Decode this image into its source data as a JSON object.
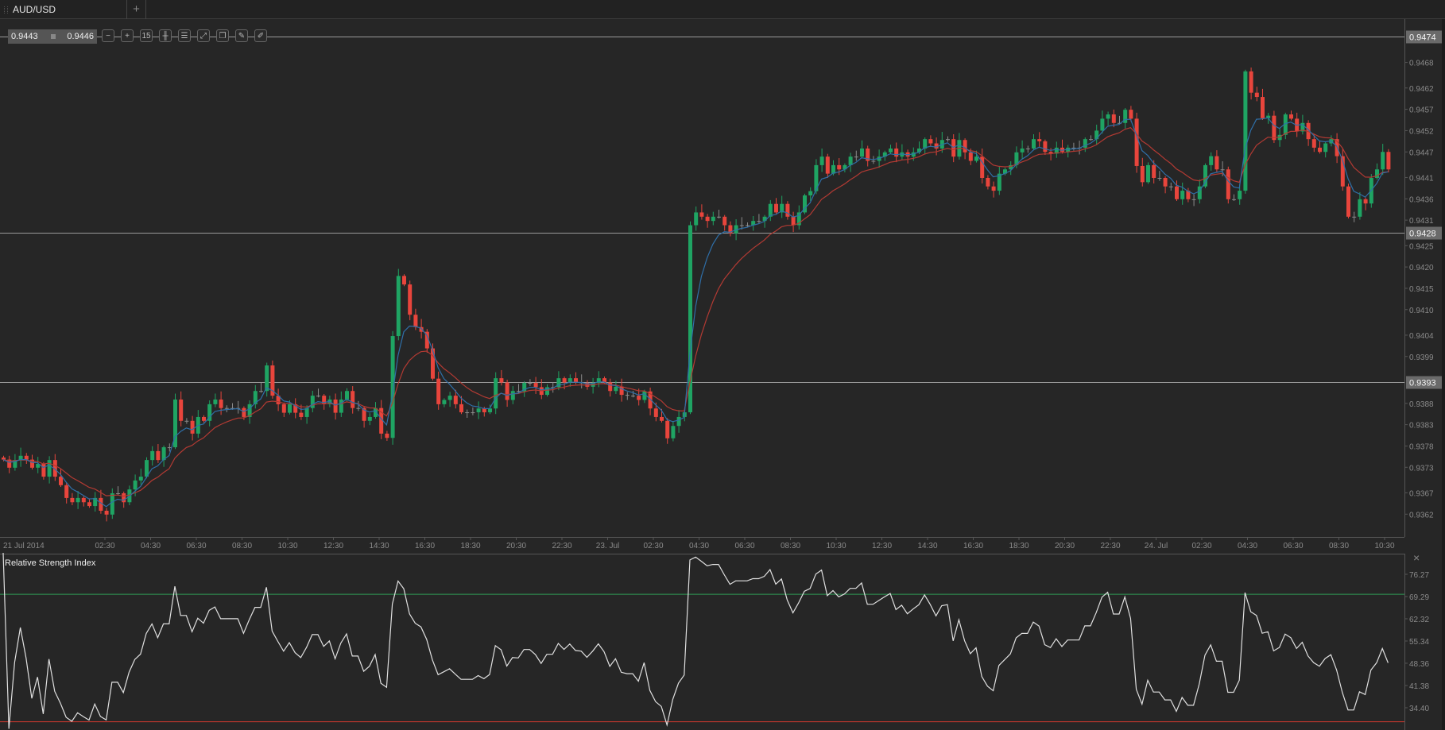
{
  "tabs": {
    "active_label": "AUD/USD",
    "add_label": "+"
  },
  "quote": {
    "bid": "0.9443",
    "ask": "0.9446"
  },
  "toolbar": {
    "tools": [
      {
        "icon": "zoom-out-icon",
        "glyph": "−"
      },
      {
        "icon": "zoom-in-icon",
        "glyph": "+"
      },
      {
        "icon": "timeframe-icon",
        "glyph": "15"
      },
      {
        "icon": "chart-type-candles-icon",
        "glyph": "╫"
      },
      {
        "icon": "indicators-settings-icon",
        "glyph": "☰"
      },
      {
        "icon": "autoscale-icon",
        "glyph": "⤢"
      },
      {
        "icon": "copy-chart-icon",
        "glyph": "❐"
      },
      {
        "icon": "edit-icon",
        "glyph": "✎"
      },
      {
        "icon": "draw-icon",
        "glyph": "✐"
      }
    ]
  },
  "colors": {
    "bull": "#1fa463",
    "bear": "#e8453c",
    "doji": "#8a8a8a",
    "ma_fast": "#2f6fa8",
    "ma_slow": "#b23a33",
    "rsi_line": "#e0e0e0",
    "rsi_upper": "#2f9a55",
    "rsi_lower": "#d0392f",
    "hline": "#9a9a9a"
  },
  "chart_data": [
    {
      "type": "candlestick",
      "symbol": "AUD/USD",
      "timeframe": "15",
      "ylim": [
        0.9357,
        0.9478
      ],
      "y_ticks": [
        "0.9468",
        "0.9462",
        "0.9457",
        "0.9452",
        "0.9447",
        "0.9441",
        "0.9436",
        "0.9431",
        "0.9425",
        "0.9420",
        "0.9415",
        "0.9410",
        "0.9404",
        "0.9399",
        "0.9388",
        "0.9383",
        "0.9378",
        "0.9373",
        "0.9367",
        "0.9362"
      ],
      "horizontal_lines": [
        "0.9474",
        "0.9428",
        "0.9393"
      ],
      "x_ticks": [
        "21 Jul 2014",
        "02:30",
        "04:30",
        "06:30",
        "08:30",
        "10:30",
        "12:30",
        "14:30",
        "16:30",
        "18:30",
        "20:30",
        "22:30",
        "23. Jul",
        "02:30",
        "04:30",
        "06:30",
        "08:30",
        "10:30",
        "12:30",
        "14:30",
        "16:30",
        "18:30",
        "20:30",
        "22:30",
        "24. Jul",
        "02:30",
        "04:30",
        "06:30",
        "08:30",
        "10:30"
      ],
      "closes": [
        0.93748,
        0.93729,
        0.93747,
        0.93757,
        0.93748,
        0.93729,
        0.93738,
        0.93708,
        0.93747,
        0.93708,
        0.93688,
        0.93658,
        0.93648,
        0.93658,
        0.93648,
        0.93639,
        0.93658,
        0.93628,
        0.93619,
        0.93669,
        0.93669,
        0.93648,
        0.93678,
        0.93699,
        0.93708,
        0.93747,
        0.93768,
        0.93747,
        0.93777,
        0.93777,
        0.93889,
        0.93839,
        0.93839,
        0.93809,
        0.93848,
        0.93839,
        0.93878,
        0.93889,
        0.93869,
        0.93869,
        0.93869,
        0.93869,
        0.93848,
        0.93878,
        0.93909,
        0.93909,
        0.93969,
        0.93898,
        0.93878,
        0.93858,
        0.93878,
        0.93858,
        0.93848,
        0.93869,
        0.93898,
        0.93898,
        0.93878,
        0.93889,
        0.93858,
        0.93889,
        0.93909,
        0.93869,
        0.93869,
        0.93839,
        0.93848,
        0.93869,
        0.93809,
        0.93799,
        0.94038,
        0.94179,
        0.94159,
        0.94088,
        0.94059,
        0.94048,
        0.94009,
        0.93938,
        0.93878,
        0.93888,
        0.93898,
        0.93878,
        0.93859,
        0.93859,
        0.93859,
        0.93868,
        0.93859,
        0.93868,
        0.93939,
        0.93929,
        0.93888,
        0.93909,
        0.93908,
        0.93928,
        0.93928,
        0.93918,
        0.939,
        0.93918,
        0.93918,
        0.93939,
        0.93929,
        0.93939,
        0.93929,
        0.93928,
        0.93919,
        0.93928,
        0.93939,
        0.93929,
        0.93909,
        0.93919,
        0.939,
        0.93898,
        0.93898,
        0.93888,
        0.93908,
        0.93868,
        0.93848,
        0.93839,
        0.93798,
        0.93827,
        0.93848,
        0.93859,
        0.94298,
        0.94328,
        0.94318,
        0.94308,
        0.94318,
        0.94318,
        0.94298,
        0.94279,
        0.94298,
        0.94298,
        0.94298,
        0.94308,
        0.94308,
        0.94318,
        0.94348,
        0.94328,
        0.94348,
        0.94318,
        0.94298,
        0.94328,
        0.94368,
        0.94378,
        0.94439,
        0.94459,
        0.94419,
        0.94439,
        0.94429,
        0.94439,
        0.94459,
        0.94459,
        0.94478,
        0.94449,
        0.94449,
        0.94459,
        0.94469,
        0.94478,
        0.94459,
        0.94469,
        0.94459,
        0.94469,
        0.94478,
        0.945,
        0.9449,
        0.94478,
        0.94498,
        0.945,
        0.94459,
        0.94498,
        0.94469,
        0.94449,
        0.94459,
        0.94409,
        0.94389,
        0.94379,
        0.94419,
        0.94429,
        0.94439,
        0.94469,
        0.94478,
        0.94478,
        0.945,
        0.94495,
        0.9447,
        0.94466,
        0.9448,
        0.9447,
        0.9448,
        0.9448,
        0.9448,
        0.945,
        0.945,
        0.9452,
        0.94548,
        0.94558,
        0.94538,
        0.94538,
        0.94569,
        0.94548,
        0.94437,
        0.94399,
        0.94439,
        0.94409,
        0.94409,
        0.94389,
        0.94389,
        0.94359,
        0.94379,
        0.94359,
        0.94359,
        0.94389,
        0.94439,
        0.9446,
        0.94429,
        0.94429,
        0.94359,
        0.94359,
        0.94379,
        0.94659,
        0.94609,
        0.94599,
        0.94549,
        0.94555,
        0.94498,
        0.9451,
        0.94558,
        0.94548,
        0.94518,
        0.94538,
        0.945,
        0.9448,
        0.9447,
        0.9449,
        0.945,
        0.9446,
        0.94389,
        0.94318,
        0.94318,
        0.94359,
        0.94349,
        0.94409,
        0.94429,
        0.9447,
        0.94429
      ]
    },
    {
      "type": "line",
      "title": "Relative Strength Index",
      "close_label": "×",
      "y_ticks": [
        "76.27",
        "69.29",
        "62.32",
        "55.34",
        "48.36",
        "41.38",
        "34.40"
      ],
      "levels": [
        70,
        30
      ],
      "ylim": [
        27.8,
        83
      ]
    }
  ]
}
